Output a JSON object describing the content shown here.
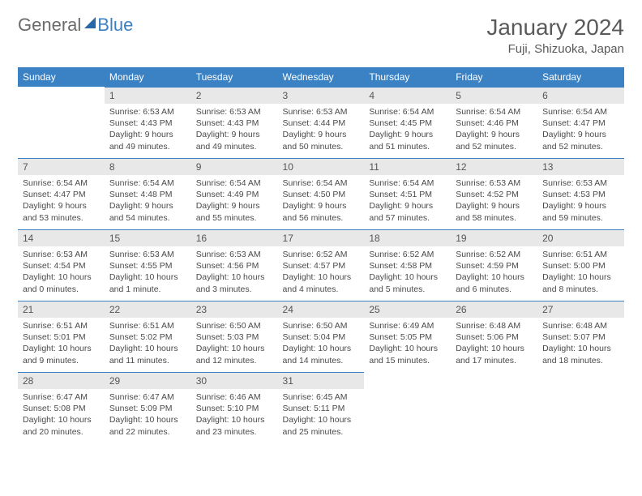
{
  "logo": {
    "general": "General",
    "blue": "Blue"
  },
  "title": "January 2024",
  "location": "Fuji, Shizuoka, Japan",
  "weekdays": [
    "Sunday",
    "Monday",
    "Tuesday",
    "Wednesday",
    "Thursday",
    "Friday",
    "Saturday"
  ],
  "colors": {
    "header_bg": "#3b82c4",
    "daynum_bg": "#e8e8e8",
    "border": "#3b82c4",
    "text": "#4a4a4a"
  },
  "weeks": [
    [
      null,
      {
        "n": "1",
        "sr": "6:53 AM",
        "ss": "4:43 PM",
        "dl": "9 hours and 49 minutes."
      },
      {
        "n": "2",
        "sr": "6:53 AM",
        "ss": "4:43 PM",
        "dl": "9 hours and 49 minutes."
      },
      {
        "n": "3",
        "sr": "6:53 AM",
        "ss": "4:44 PM",
        "dl": "9 hours and 50 minutes."
      },
      {
        "n": "4",
        "sr": "6:54 AM",
        "ss": "4:45 PM",
        "dl": "9 hours and 51 minutes."
      },
      {
        "n": "5",
        "sr": "6:54 AM",
        "ss": "4:46 PM",
        "dl": "9 hours and 52 minutes."
      },
      {
        "n": "6",
        "sr": "6:54 AM",
        "ss": "4:47 PM",
        "dl": "9 hours and 52 minutes."
      }
    ],
    [
      {
        "n": "7",
        "sr": "6:54 AM",
        "ss": "4:47 PM",
        "dl": "9 hours and 53 minutes."
      },
      {
        "n": "8",
        "sr": "6:54 AM",
        "ss": "4:48 PM",
        "dl": "9 hours and 54 minutes."
      },
      {
        "n": "9",
        "sr": "6:54 AM",
        "ss": "4:49 PM",
        "dl": "9 hours and 55 minutes."
      },
      {
        "n": "10",
        "sr": "6:54 AM",
        "ss": "4:50 PM",
        "dl": "9 hours and 56 minutes."
      },
      {
        "n": "11",
        "sr": "6:54 AM",
        "ss": "4:51 PM",
        "dl": "9 hours and 57 minutes."
      },
      {
        "n": "12",
        "sr": "6:53 AM",
        "ss": "4:52 PM",
        "dl": "9 hours and 58 minutes."
      },
      {
        "n": "13",
        "sr": "6:53 AM",
        "ss": "4:53 PM",
        "dl": "9 hours and 59 minutes."
      }
    ],
    [
      {
        "n": "14",
        "sr": "6:53 AM",
        "ss": "4:54 PM",
        "dl": "10 hours and 0 minutes."
      },
      {
        "n": "15",
        "sr": "6:53 AM",
        "ss": "4:55 PM",
        "dl": "10 hours and 1 minute."
      },
      {
        "n": "16",
        "sr": "6:53 AM",
        "ss": "4:56 PM",
        "dl": "10 hours and 3 minutes."
      },
      {
        "n": "17",
        "sr": "6:52 AM",
        "ss": "4:57 PM",
        "dl": "10 hours and 4 minutes."
      },
      {
        "n": "18",
        "sr": "6:52 AM",
        "ss": "4:58 PM",
        "dl": "10 hours and 5 minutes."
      },
      {
        "n": "19",
        "sr": "6:52 AM",
        "ss": "4:59 PM",
        "dl": "10 hours and 6 minutes."
      },
      {
        "n": "20",
        "sr": "6:51 AM",
        "ss": "5:00 PM",
        "dl": "10 hours and 8 minutes."
      }
    ],
    [
      {
        "n": "21",
        "sr": "6:51 AM",
        "ss": "5:01 PM",
        "dl": "10 hours and 9 minutes."
      },
      {
        "n": "22",
        "sr": "6:51 AM",
        "ss": "5:02 PM",
        "dl": "10 hours and 11 minutes."
      },
      {
        "n": "23",
        "sr": "6:50 AM",
        "ss": "5:03 PM",
        "dl": "10 hours and 12 minutes."
      },
      {
        "n": "24",
        "sr": "6:50 AM",
        "ss": "5:04 PM",
        "dl": "10 hours and 14 minutes."
      },
      {
        "n": "25",
        "sr": "6:49 AM",
        "ss": "5:05 PM",
        "dl": "10 hours and 15 minutes."
      },
      {
        "n": "26",
        "sr": "6:48 AM",
        "ss": "5:06 PM",
        "dl": "10 hours and 17 minutes."
      },
      {
        "n": "27",
        "sr": "6:48 AM",
        "ss": "5:07 PM",
        "dl": "10 hours and 18 minutes."
      }
    ],
    [
      {
        "n": "28",
        "sr": "6:47 AM",
        "ss": "5:08 PM",
        "dl": "10 hours and 20 minutes."
      },
      {
        "n": "29",
        "sr": "6:47 AM",
        "ss": "5:09 PM",
        "dl": "10 hours and 22 minutes."
      },
      {
        "n": "30",
        "sr": "6:46 AM",
        "ss": "5:10 PM",
        "dl": "10 hours and 23 minutes."
      },
      {
        "n": "31",
        "sr": "6:45 AM",
        "ss": "5:11 PM",
        "dl": "10 hours and 25 minutes."
      },
      null,
      null,
      null
    ]
  ],
  "labels": {
    "sunrise": "Sunrise:",
    "sunset": "Sunset:",
    "daylight": "Daylight:"
  }
}
